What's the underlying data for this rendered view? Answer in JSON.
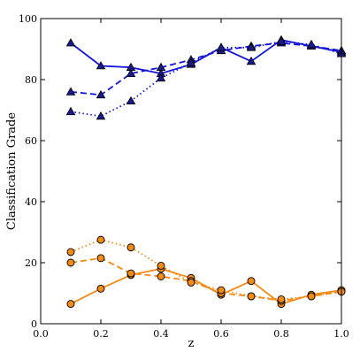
{
  "chart_data": {
    "type": "line",
    "title": "",
    "xlabel": "z",
    "ylabel": "Classification Grade",
    "xlim": [
      0.0,
      1.0
    ],
    "ylim": [
      0,
      100
    ],
    "xticks": [
      0.0,
      0.2,
      0.4,
      0.6,
      0.8,
      1.0
    ],
    "xtick_labels": [
      "0.0",
      "0.2",
      "0.4",
      "0.6",
      "0.8",
      "1.0"
    ],
    "yticks": [
      0,
      20,
      40,
      60,
      80,
      100
    ],
    "ytick_labels": [
      "0",
      "20",
      "40",
      "60",
      "80",
      "100"
    ],
    "grid": false,
    "legend": "none",
    "colors": {
      "blue": "#1515d8",
      "orange": "#f28a14",
      "blue_marker": "#1a1a8c",
      "orange_marker": "#f28a14",
      "marker_edge": "#000000"
    },
    "series": [
      {
        "color": "blue",
        "line_style": "solid",
        "marker": "triangle",
        "x": [
          0.1,
          0.2,
          0.3,
          0.4,
          0.5,
          0.6,
          0.7,
          0.8,
          0.9,
          1.0
        ],
        "y": [
          92,
          84.5,
          84,
          82,
          85,
          90.5,
          86,
          93,
          91,
          89
        ]
      },
      {
        "color": "blue",
        "line_style": "dashed",
        "marker": "triangle",
        "x": [
          0.1,
          0.2,
          0.3,
          0.4,
          0.5,
          0.6,
          0.7,
          0.8,
          0.9,
          1.0
        ],
        "y": [
          76,
          75,
          82,
          84,
          86.5,
          89.5,
          91,
          92,
          91,
          89.5
        ]
      },
      {
        "color": "blue",
        "line_style": "dotted",
        "marker": "triangle",
        "x": [
          0.1,
          0.2,
          0.3,
          0.4,
          0.5,
          0.6,
          0.7,
          0.8,
          0.9,
          1.0
        ],
        "y": [
          69.5,
          68,
          73,
          80.5,
          85.5,
          90.5,
          90.5,
          92.5,
          91.5,
          88.5
        ]
      },
      {
        "color": "orange",
        "line_style": "solid",
        "marker": "circle",
        "x": [
          0.1,
          0.2,
          0.3,
          0.4,
          0.5,
          0.6,
          0.7,
          0.8,
          0.9,
          1.0
        ],
        "y": [
          6.5,
          11.5,
          16,
          18,
          15,
          9.5,
          14,
          6.5,
          9.5,
          11
        ]
      },
      {
        "color": "orange",
        "line_style": "dashed",
        "marker": "circle",
        "x": [
          0.1,
          0.2,
          0.3,
          0.4,
          0.5,
          0.6,
          0.7,
          0.8,
          0.9,
          1.0
        ],
        "y": [
          20,
          21.5,
          16.5,
          15.5,
          14,
          10,
          9,
          7.5,
          9,
          10.5
        ]
      },
      {
        "color": "orange",
        "line_style": "dotted",
        "marker": "circle",
        "x": [
          0.1,
          0.2,
          0.3,
          0.4,
          0.5,
          0.6,
          0.7,
          0.8,
          0.9,
          1.0
        ],
        "y": [
          23.5,
          27.5,
          25,
          19,
          13.5,
          11,
          9,
          8,
          9,
          10.5
        ]
      }
    ]
  }
}
